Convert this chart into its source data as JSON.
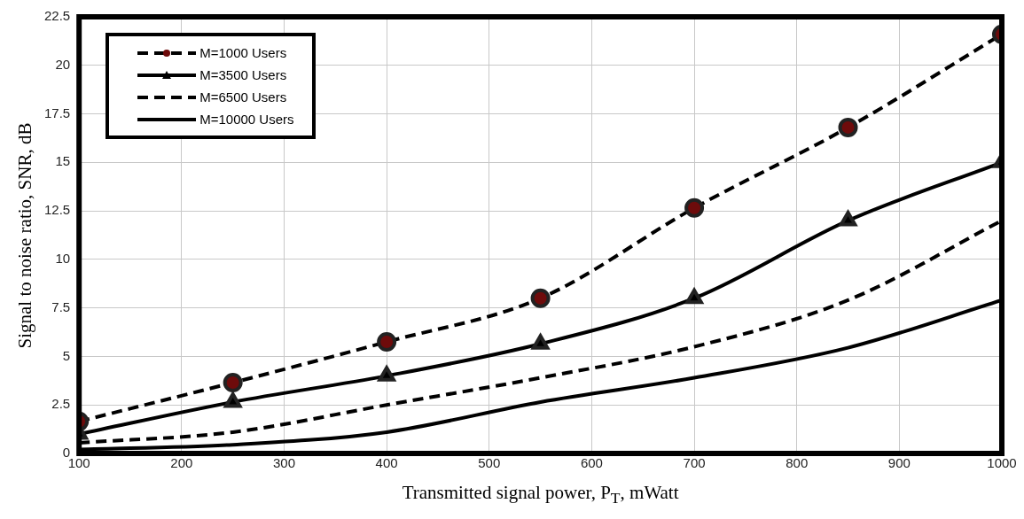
{
  "chart_data": {
    "type": "line",
    "xlabel": "Transmitted signal power, P$_{T}$, mWatt",
    "ylabel": "Signal to noise ratio, SNR, dB",
    "x": [
      100,
      250,
      400,
      550,
      700,
      850,
      1000
    ],
    "xlim": [
      100,
      1000
    ],
    "xticks": [
      100,
      200,
      300,
      400,
      500,
      600,
      700,
      800,
      900,
      1000
    ],
    "ylim": [
      0,
      22.5
    ],
    "yticks": [
      0,
      2.5,
      5,
      7.5,
      10,
      12.5,
      15,
      17.5,
      20,
      22.5
    ],
    "grid": true,
    "legend": "top left",
    "series": [
      {
        "name": "M=1000 Users",
        "color": "#6e0b0b",
        "marker": "circle",
        "line_style": "dashed",
        "values": [
          1.65,
          3.65,
          5.75,
          8.0,
          12.65,
          16.8,
          21.6
        ]
      },
      {
        "name": "M=3500 Users",
        "color": "#000000",
        "marker": "triangle",
        "line_style": "solid",
        "values": [
          1.0,
          2.65,
          4.0,
          5.65,
          8.0,
          12.0,
          15.0
        ]
      },
      {
        "name": "M=6500 Users",
        "color": "#000000",
        "marker": "none",
        "line_style": "dashed",
        "values": [
          0.55,
          1.1,
          2.5,
          3.9,
          5.5,
          7.9,
          12.0
        ]
      },
      {
        "name": "M=10000 Users",
        "color": "#000000",
        "marker": "none",
        "line_style": "solid",
        "values": [
          0.2,
          0.45,
          1.1,
          2.65,
          3.9,
          5.45,
          7.9
        ]
      }
    ]
  }
}
